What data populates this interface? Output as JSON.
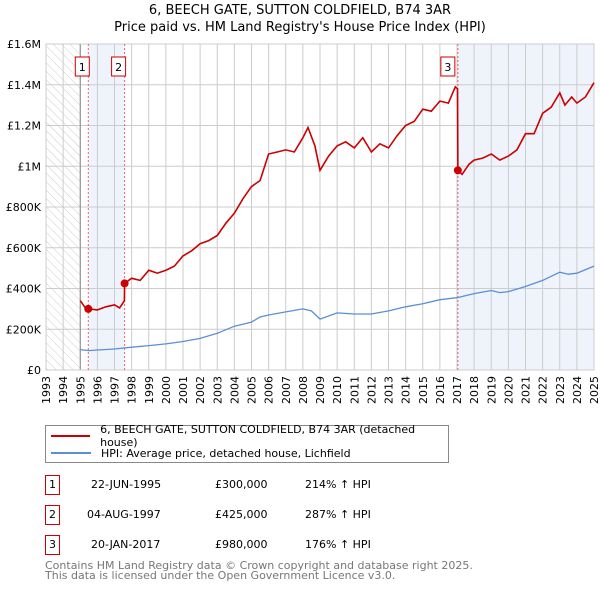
{
  "title": "6, BEECH GATE, SUTTON COLDFIELD, B74 3AR",
  "subtitle": "Price paid vs. HM Land Registry's House Price Index (HPI)",
  "colors": {
    "property": "#cc0000",
    "hpi": "#5b8fd4",
    "shade": "#eef3fc",
    "grid": "#cccccc"
  },
  "chart_data": {
    "type": "line",
    "title": "6, BEECH GATE, SUTTON COLDFIELD, B74 3AR",
    "subtitle": "Price paid vs. HM Land Registry's House Price Index (HPI)",
    "xlim": [
      1993,
      2025
    ],
    "ylim": [
      0,
      1600000
    ],
    "grid": true,
    "x_ticks": [
      "1993",
      "1994",
      "1995",
      "1996",
      "1997",
      "1998",
      "1999",
      "2000",
      "2001",
      "2002",
      "2003",
      "2004",
      "2005",
      "2006",
      "2007",
      "2008",
      "2009",
      "2010",
      "2011",
      "2012",
      "2013",
      "2014",
      "2015",
      "2016",
      "2017",
      "2018",
      "2019",
      "2020",
      "2021",
      "2022",
      "2023",
      "2024",
      "2025"
    ],
    "y_ticks": [
      {
        "v": 0,
        "label": "£0"
      },
      {
        "v": 200000,
        "label": "£200K"
      },
      {
        "v": 400000,
        "label": "£400K"
      },
      {
        "v": 600000,
        "label": "£600K"
      },
      {
        "v": 800000,
        "label": "£800K"
      },
      {
        "v": 1000000,
        "label": "£1M"
      },
      {
        "v": 1200000,
        "label": "£1.2M"
      },
      {
        "v": 1400000,
        "label": "£1.4M"
      },
      {
        "v": 1600000,
        "label": "£1.6M"
      }
    ],
    "series": [
      {
        "name": "6, BEECH GATE, SUTTON COLDFIELD, B74 3AR (detached house)",
        "color": "#cc0000",
        "x": [
          1995.0,
          1995.3,
          1995.47,
          1996,
          1996.5,
          1997,
          1997.3,
          1997.58,
          1997.59,
          1998,
          1998.5,
          1999,
          1999.5,
          2000,
          2000.5,
          2001,
          2001.5,
          2002,
          2002.5,
          2003,
          2003.5,
          2004,
          2004.5,
          2005,
          2005.5,
          2006,
          2006.5,
          2007,
          2007.5,
          2008,
          2008.3,
          2008.7,
          2009,
          2009.5,
          2010,
          2010.5,
          2011,
          2011.5,
          2012,
          2012.5,
          2013,
          2013.5,
          2014,
          2014.5,
          2015,
          2015.5,
          2016,
          2016.5,
          2016.9,
          2017.03,
          2017.05,
          2017.3,
          2017.7,
          2018,
          2018.5,
          2019,
          2019.5,
          2020,
          2020.5,
          2021,
          2021.5,
          2022,
          2022.5,
          2023,
          2023.3,
          2023.7,
          2024,
          2024.5,
          2025
        ],
        "y": [
          340000,
          305000,
          300000,
          295000,
          310000,
          320000,
          305000,
          340000,
          425000,
          450000,
          440000,
          490000,
          475000,
          490000,
          510000,
          560000,
          585000,
          620000,
          635000,
          660000,
          720000,
          770000,
          840000,
          900000,
          930000,
          1060000,
          1070000,
          1080000,
          1070000,
          1140000,
          1190000,
          1100000,
          980000,
          1050000,
          1100000,
          1120000,
          1090000,
          1140000,
          1070000,
          1110000,
          1090000,
          1150000,
          1200000,
          1220000,
          1280000,
          1270000,
          1320000,
          1310000,
          1390000,
          1380000,
          980000,
          960000,
          1010000,
          1030000,
          1040000,
          1060000,
          1030000,
          1050000,
          1080000,
          1160000,
          1160000,
          1260000,
          1290000,
          1360000,
          1300000,
          1340000,
          1310000,
          1340000,
          1410000
        ]
      },
      {
        "name": "HPI: Average price, detached house, Lichfield",
        "color": "#5b8fd4",
        "x": [
          1995,
          1995.5,
          1996,
          1997,
          1998,
          1999,
          2000,
          2001,
          2002,
          2003,
          2004,
          2005,
          2005.5,
          2006,
          2007,
          2008,
          2008.5,
          2009,
          2009.5,
          2010,
          2011,
          2012,
          2013,
          2014,
          2015,
          2016,
          2016.5,
          2017,
          2018,
          2019,
          2019.5,
          2020,
          2021,
          2022,
          2022.5,
          2023,
          2023.5,
          2024,
          2025
        ],
        "y": [
          100000,
          95000,
          98000,
          103000,
          112000,
          120000,
          128000,
          140000,
          155000,
          180000,
          215000,
          235000,
          260000,
          270000,
          285000,
          300000,
          290000,
          250000,
          265000,
          280000,
          275000,
          275000,
          290000,
          310000,
          325000,
          345000,
          350000,
          355000,
          375000,
          390000,
          380000,
          385000,
          410000,
          440000,
          460000,
          480000,
          470000,
          475000,
          510000
        ]
      }
    ],
    "sales": [
      {
        "n": "1",
        "x": 1995.47,
        "date": "22-JUN-1995",
        "price": "£300,000",
        "value": 300000,
        "hpi": "214% ↑ HPI"
      },
      {
        "n": "2",
        "x": 1997.59,
        "date": "04-AUG-1997",
        "price": "£425,000",
        "value": 425000,
        "hpi": "287% ↑ HPI"
      },
      {
        "n": "3",
        "x": 2017.05,
        "date": "20-JAN-2017",
        "price": "£980,000",
        "value": 980000,
        "hpi": "176% ↑ HPI"
      }
    ],
    "hatched_range": [
      1993,
      1995
    ],
    "legend_placement": "below"
  },
  "legend": {
    "property": "6, BEECH GATE, SUTTON COLDFIELD, B74 3AR (detached house)",
    "hpi": "HPI: Average price, detached house, Lichfield"
  },
  "footer": {
    "line1": "Contains HM Land Registry data © Crown copyright and database right 2025.",
    "line2": "This data is licensed under the Open Government Licence v3.0."
  }
}
